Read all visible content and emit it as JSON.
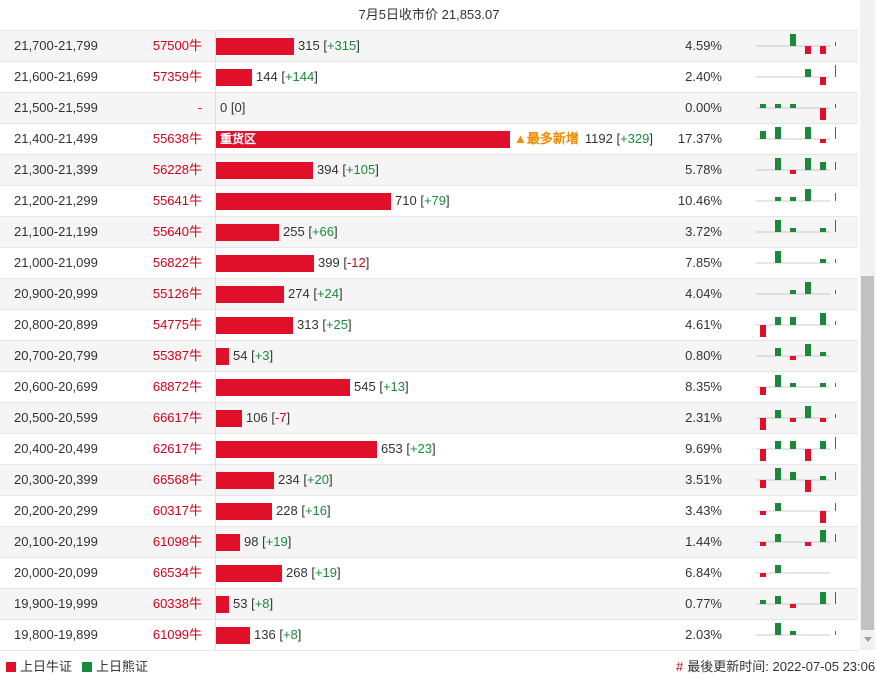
{
  "header": {
    "title": "7月5日收市价 21,853.07"
  },
  "colors": {
    "bull": "#e0102b",
    "bear": "#1a8a3a"
  },
  "max_value": 1192,
  "rows": [
    {
      "range": "21,700-21,799",
      "count": "57500牛",
      "value": 315,
      "change": "+315",
      "pct": "4.59%",
      "spark": [
        0,
        0,
        3,
        -2,
        -2,
        1
      ]
    },
    {
      "range": "21,600-21,699",
      "count": "57359牛",
      "value": 144,
      "change": "+144",
      "pct": "2.40%",
      "spark": [
        0,
        0,
        0,
        2,
        -2,
        3
      ]
    },
    {
      "range": "21,500-21,599",
      "count": "-",
      "value": 0,
      "change": "0",
      "pct": "0.00%",
      "spark": [
        1,
        1,
        1,
        0,
        -3,
        1
      ]
    },
    {
      "range": "21,400-21,499",
      "count": "55638牛",
      "value": 1192,
      "change": "+329",
      "pct": "17.37%",
      "bar_label": "重货区",
      "newest": "▲最多新增",
      "spark": [
        2,
        3,
        0,
        3,
        -1,
        3
      ]
    },
    {
      "range": "21,300-21,399",
      "count": "56228牛",
      "value": 394,
      "change": "+105",
      "pct": "5.78%",
      "spark": [
        0,
        3,
        -1,
        3,
        2,
        2
      ]
    },
    {
      "range": "21,200-21,299",
      "count": "55641牛",
      "value": 710,
      "change": "+79",
      "pct": "10.46%",
      "spark": [
        0,
        1,
        1,
        3,
        0,
        2
      ]
    },
    {
      "range": "21,100-21,199",
      "count": "55640牛",
      "value": 255,
      "change": "+66",
      "pct": "3.72%",
      "spark": [
        0,
        3,
        1,
        0,
        1,
        3
      ]
    },
    {
      "range": "21,000-21,099",
      "count": "56822牛",
      "value": 399,
      "change": "-12",
      "pct": "7.85%",
      "spark": [
        0,
        3,
        0,
        0,
        1,
        1
      ]
    },
    {
      "range": "20,900-20,999",
      "count": "55126牛",
      "value": 274,
      "change": "+24",
      "pct": "4.04%",
      "spark": [
        0,
        0,
        1,
        3,
        0,
        1
      ]
    },
    {
      "range": "20,800-20,899",
      "count": "54775牛",
      "value": 313,
      "change": "+25",
      "pct": "4.61%",
      "spark": [
        -3,
        2,
        2,
        0,
        3,
        1
      ]
    },
    {
      "range": "20,700-20,799",
      "count": "55387牛",
      "value": 54,
      "change": "+3",
      "pct": "0.80%",
      "spark": [
        0,
        2,
        -1,
        3,
        1,
        0
      ]
    },
    {
      "range": "20,600-20,699",
      "count": "68872牛",
      "value": 545,
      "change": "+13",
      "pct": "8.35%",
      "spark": [
        -2,
        3,
        1,
        0,
        1,
        1
      ]
    },
    {
      "range": "20,500-20,599",
      "count": "66617牛",
      "value": 106,
      "change": "-7",
      "pct": "2.31%",
      "spark": [
        -3,
        2,
        -1,
        3,
        -1,
        1
      ]
    },
    {
      "range": "20,400-20,499",
      "count": "62617牛",
      "value": 653,
      "change": "+23",
      "pct": "9.69%",
      "spark": [
        -3,
        2,
        2,
        -3,
        2,
        3
      ]
    },
    {
      "range": "20,300-20,399",
      "count": "66568牛",
      "value": 234,
      "change": "+20",
      "pct": "3.51%",
      "spark": [
        -2,
        3,
        2,
        -3,
        1,
        2
      ]
    },
    {
      "range": "20,200-20,299",
      "count": "60317牛",
      "value": 228,
      "change": "+16",
      "pct": "3.43%",
      "spark": [
        -1,
        2,
        0,
        0,
        -3,
        2
      ]
    },
    {
      "range": "20,100-20,199",
      "count": "61098牛",
      "value": 98,
      "change": "+19",
      "pct": "1.44%",
      "spark": [
        -1,
        2,
        0,
        -1,
        3,
        2
      ]
    },
    {
      "range": "20,000-20,099",
      "count": "66534牛",
      "value": 268,
      "change": "+19",
      "pct": "6.84%",
      "spark": [
        -1,
        2,
        0,
        0,
        0,
        0
      ]
    },
    {
      "range": "19,900-19,999",
      "count": "60338牛",
      "value": 53,
      "change": "+8",
      "pct": "0.77%",
      "spark": [
        1,
        2,
        -1,
        0,
        3,
        3
      ]
    },
    {
      "range": "19,800-19,899",
      "count": "61099牛",
      "value": 136,
      "change": "+8",
      "pct": "2.03%",
      "spark": [
        0,
        3,
        1,
        0,
        0,
        1
      ]
    }
  ],
  "legend": {
    "bull": "上日牛证",
    "bear": "上日熊证"
  },
  "footer": {
    "hash": "#",
    "updated": "最後更新时间: 2022-07-05 23:06"
  }
}
